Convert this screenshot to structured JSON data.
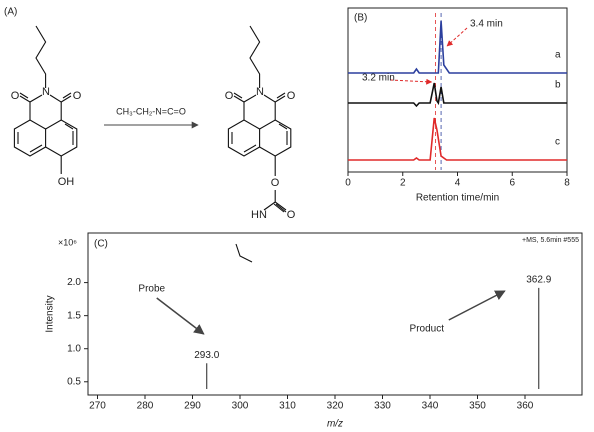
{
  "panel_a": {
    "label": "(A)",
    "reagent": "CH₃-CH₂-N=C=O",
    "reactant_atoms": [
      "O",
      "N",
      "O",
      "OH"
    ],
    "product_atoms": [
      "O",
      "N",
      "O",
      "O",
      "O",
      "HN"
    ]
  },
  "chart_data": [
    {
      "type": "line",
      "title": "(B)",
      "xlabel": "Retention time/min",
      "xlim": [
        0,
        8
      ],
      "xticks": [
        0,
        2,
        4,
        6,
        8
      ],
      "series": [
        {
          "name": "a",
          "color": "#2b3f9e",
          "x": [
            0,
            2.4,
            2.5,
            2.6,
            3.3,
            3.4,
            3.5,
            3.7,
            8
          ],
          "values": [
            0,
            0,
            4,
            0,
            0,
            52,
            8,
            0,
            0
          ]
        },
        {
          "name": "b",
          "color": "#111111",
          "x": [
            0,
            2.4,
            2.5,
            2.6,
            3.0,
            3.15,
            3.25,
            3.3,
            3.4,
            3.5,
            8
          ],
          "values": [
            0,
            0,
            -3,
            0,
            0,
            20,
            2,
            0,
            16,
            0,
            0
          ]
        },
        {
          "name": "c",
          "color": "#e02a2a",
          "x": [
            0,
            2.4,
            2.5,
            2.6,
            3.0,
            3.15,
            3.25,
            3.4,
            3.6,
            8
          ],
          "values": [
            0,
            0,
            2,
            0,
            0,
            42,
            30,
            4,
            0,
            0
          ]
        }
      ],
      "reference_lines": [
        {
          "value": 3.2,
          "color": "#e02a2a"
        },
        {
          "value": 3.4,
          "color": "#2b3f9e"
        }
      ],
      "annotations": [
        {
          "text": "3.4 min",
          "x": 3.4
        },
        {
          "text": "3.2 min",
          "x": 3.2
        }
      ]
    },
    {
      "type": "stem",
      "title": "(C)",
      "subtitle": "+MS, 5.6min #555",
      "multiplier": "×10⁶",
      "xlabel": "m/z",
      "ylabel": "Intensity",
      "x": [
        293,
        362.9
      ],
      "values": [
        0.78,
        1.92
      ],
      "value_labels": [
        "293.0",
        "362.9"
      ],
      "xlim": [
        268,
        372
      ],
      "ylim": [
        0.3,
        2.75
      ],
      "xticks": [
        270,
        280,
        290,
        300,
        310,
        320,
        330,
        340,
        350,
        360
      ],
      "yticks": [
        0.5,
        {
          "value": 1,
          "label": "1.0"
        },
        1.5,
        {
          "value": 2,
          "label": "2.0"
        }
      ],
      "annotations": [
        {
          "text": "Probe",
          "x": 293
        },
        {
          "text": "Product",
          "x": 362.9
        }
      ]
    }
  ]
}
